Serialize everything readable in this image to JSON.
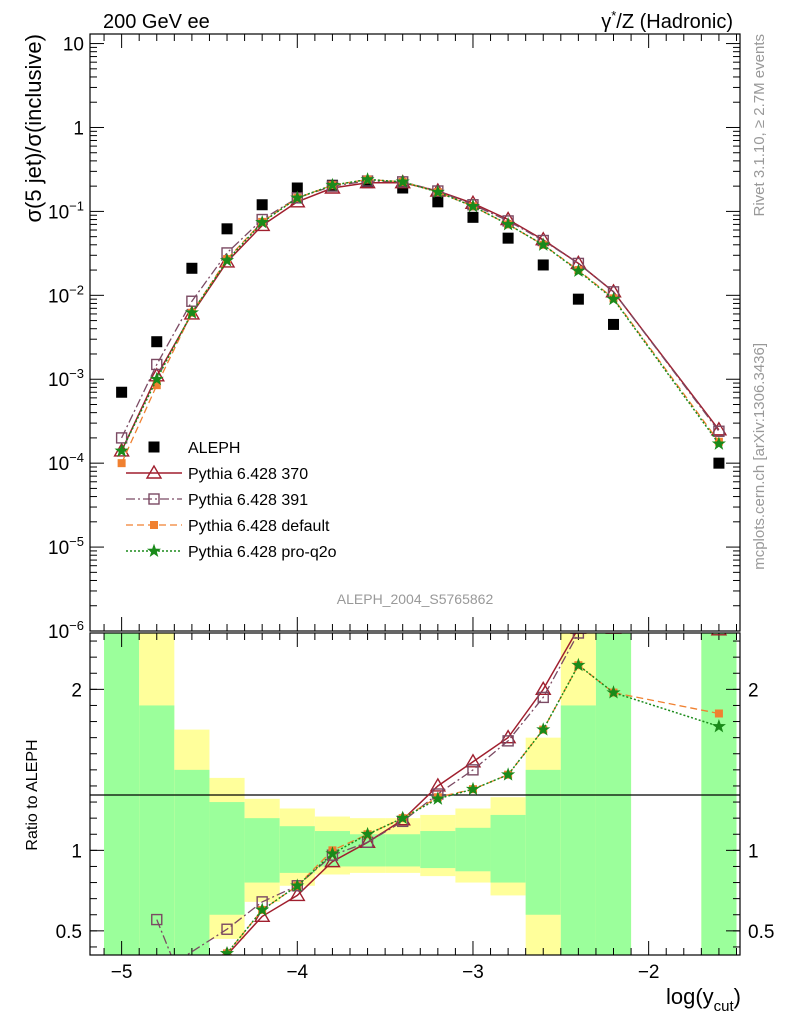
{
  "header": {
    "left": "200 GeV ee",
    "right_pre": "γ",
    "right_sup": "*",
    "right_post": "/Z (Hadronic)"
  },
  "side_text": {
    "rivet": "Rivet 3.1.10, ≥ 2.7M events",
    "mcplots": "mcplots.cern.ch [arXiv:1306.3436]"
  },
  "analysis_label": "ALEPH_2004_S5765862",
  "colors": {
    "data": "#000000",
    "p370": "#a01f2e",
    "p391": "#7b4a63",
    "pdefault": "#f08030",
    "pq2o": "#1a8a1a",
    "band_inner": "#9bff9b",
    "band_outer": "#ffff9b"
  },
  "chart_data": [
    {
      "type": "line",
      "panel": "main",
      "ylabel": "σ(5 jet)/σ(inclusive)",
      "yscale": "log",
      "ylim": [
        1e-06,
        13
      ],
      "xlim": [
        -5.18,
        -1.48
      ],
      "yticks": [
        {
          "v": 10,
          "m": "10"
        },
        {
          "v": 1,
          "m": "1"
        },
        {
          "v": 0.1,
          "m": "10",
          "e": "−1"
        },
        {
          "v": 0.01,
          "m": "10",
          "e": "−2"
        },
        {
          "v": 0.001,
          "m": "10",
          "e": "−3"
        },
        {
          "v": 0.0001,
          "m": "10",
          "e": "−4"
        },
        {
          "v": 1e-05,
          "m": "10",
          "e": "−5"
        },
        {
          "v": 1e-06,
          "m": "10",
          "e": "−6"
        }
      ],
      "legend_position": "lower-left",
      "series": [
        {
          "name": "ALEPH",
          "style": "data",
          "marker": "square-filled",
          "x": [
            -5.0,
            -4.8,
            -4.6,
            -4.4,
            -4.2,
            -4.0,
            -3.8,
            -3.6,
            -3.4,
            -3.2,
            -3.0,
            -2.8,
            -2.6,
            -2.4,
            -2.2,
            -1.6
          ],
          "y": [
            0.0007,
            0.0028,
            0.021,
            0.062,
            0.12,
            0.19,
            0.205,
            0.22,
            0.19,
            0.13,
            0.085,
            0.048,
            0.023,
            0.009,
            0.0045,
            0.0001
          ]
        },
        {
          "name": "Pythia 6.428 370",
          "style": "p370",
          "marker": "triangle-open",
          "x": [
            -5.0,
            -4.8,
            -4.6,
            -4.4,
            -4.2,
            -4.0,
            -3.8,
            -3.6,
            -3.4,
            -3.2,
            -3.0,
            -2.8,
            -2.6,
            -2.4,
            -2.2,
            -1.6
          ],
          "y": [
            0.00014,
            0.0011,
            0.006,
            0.025,
            0.068,
            0.13,
            0.19,
            0.22,
            0.22,
            0.175,
            0.125,
            0.08,
            0.046,
            0.024,
            0.011,
            0.00025
          ]
        },
        {
          "name": "Pythia 6.428 391",
          "style": "p391",
          "marker": "square-open",
          "x": [
            -5.0,
            -4.8,
            -4.6,
            -4.4,
            -4.2,
            -4.0,
            -3.8,
            -3.6,
            -3.4,
            -3.2,
            -3.0,
            -2.8,
            -2.6,
            -2.4,
            -2.2,
            -1.6
          ],
          "y": [
            0.0002,
            0.0015,
            0.0085,
            0.032,
            0.08,
            0.145,
            0.2,
            0.23,
            0.225,
            0.175,
            0.12,
            0.077,
            0.045,
            0.024,
            0.011,
            0.00024
          ]
        },
        {
          "name": "Pythia 6.428 default",
          "style": "pdefault",
          "marker": "square-filled-small",
          "x": [
            -5.0,
            -4.8,
            -4.6,
            -4.4,
            -4.2,
            -4.0,
            -3.8,
            -3.6,
            -3.4,
            -3.2,
            -3.0,
            -2.8,
            -2.6,
            -2.4,
            -2.2,
            -1.6
          ],
          "y": [
            0.0001,
            0.00085,
            0.0062,
            0.027,
            0.075,
            0.145,
            0.205,
            0.24,
            0.225,
            0.17,
            0.115,
            0.07,
            0.04,
            0.02,
            0.0092,
            0.00018
          ]
        },
        {
          "name": "Pythia 6.428 pro-q2o",
          "style": "pq2o",
          "marker": "star",
          "x": [
            -5.0,
            -4.8,
            -4.6,
            -4.4,
            -4.2,
            -4.0,
            -3.8,
            -3.6,
            -3.4,
            -3.2,
            -3.0,
            -2.8,
            -2.6,
            -2.4,
            -2.2,
            -1.6
          ],
          "y": [
            0.00014,
            0.001,
            0.0062,
            0.026,
            0.074,
            0.145,
            0.205,
            0.24,
            0.225,
            0.17,
            0.115,
            0.07,
            0.04,
            0.0195,
            0.009,
            0.00017
          ]
        }
      ]
    },
    {
      "type": "line",
      "panel": "ratio",
      "ylabel": "Ratio to ALEPH",
      "xlabel_base": "log(y",
      "xlabel_sub": "cut",
      "xlabel_end": ")",
      "ylim": [
        0.35,
        2.35
      ],
      "xlim": [
        -5.18,
        -1.48
      ],
      "yticks": [
        {
          "v": 0.5,
          "label": "0.5"
        },
        {
          "v": 1,
          "label": "1"
        },
        {
          "v": 2,
          "label": "2"
        }
      ],
      "xticks": [
        {
          "v": -5,
          "label": "−5"
        },
        {
          "v": -4,
          "label": "−4"
        },
        {
          "v": -3,
          "label": "−3"
        },
        {
          "v": -2,
          "label": "−2"
        }
      ],
      "bands": [
        {
          "x0": -5.1,
          "x1": -4.9,
          "outer": [
            0.35,
            2.35
          ],
          "inner": [
            0.35,
            2.35
          ]
        },
        {
          "x0": -4.9,
          "x1": -4.7,
          "outer": [
            0.35,
            2.35
          ],
          "inner": [
            0.35,
            1.9
          ]
        },
        {
          "x0": -4.7,
          "x1": -4.5,
          "outer": [
            0.35,
            1.75
          ],
          "inner": [
            0.35,
            1.5
          ]
        },
        {
          "x0": -4.5,
          "x1": -4.3,
          "outer": [
            0.45,
            1.45
          ],
          "inner": [
            0.6,
            1.3
          ]
        },
        {
          "x0": -4.3,
          "x1": -4.1,
          "outer": [
            0.68,
            1.32
          ],
          "inner": [
            0.8,
            1.2
          ]
        },
        {
          "x0": -4.1,
          "x1": -3.9,
          "outer": [
            0.78,
            1.26
          ],
          "inner": [
            0.86,
            1.15
          ]
        },
        {
          "x0": -3.9,
          "x1": -3.7,
          "outer": [
            0.85,
            1.21
          ],
          "inner": [
            0.9,
            1.12
          ]
        },
        {
          "x0": -3.7,
          "x1": -3.5,
          "outer": [
            0.86,
            1.2
          ],
          "inner": [
            0.9,
            1.1
          ]
        },
        {
          "x0": -3.5,
          "x1": -3.3,
          "outer": [
            0.86,
            1.2
          ],
          "inner": [
            0.9,
            1.1
          ]
        },
        {
          "x0": -3.3,
          "x1": -3.1,
          "outer": [
            0.84,
            1.22
          ],
          "inner": [
            0.89,
            1.12
          ]
        },
        {
          "x0": -3.1,
          "x1": -2.9,
          "outer": [
            0.8,
            1.26
          ],
          "inner": [
            0.87,
            1.14
          ]
        },
        {
          "x0": -2.9,
          "x1": -2.7,
          "outer": [
            0.72,
            1.33
          ],
          "inner": [
            0.8,
            1.22
          ]
        },
        {
          "x0": -2.7,
          "x1": -2.5,
          "outer": [
            0.35,
            1.7
          ],
          "inner": [
            0.6,
            1.5
          ]
        },
        {
          "x0": -2.5,
          "x1": -2.3,
          "outer": [
            0.35,
            2.35
          ],
          "inner": [
            0.35,
            1.9
          ]
        },
        {
          "x0": -2.3,
          "x1": -2.1,
          "outer": [
            0.35,
            2.35
          ],
          "inner": [
            0.35,
            2.35
          ]
        },
        {
          "x0": -1.7,
          "x1": -1.5,
          "outer": [
            0.35,
            2.35
          ],
          "inner": [
            0.35,
            2.35
          ]
        }
      ],
      "series": [
        {
          "name": "Pythia 6.428 370",
          "style": "p370",
          "marker": "triangle-open",
          "x": [
            -4.4,
            -4.2,
            -4.0,
            -3.8,
            -3.6,
            -3.4,
            -3.2,
            -3.0,
            -2.8,
            -2.6,
            -2.4,
            -2.2,
            -1.6
          ],
          "y": [
            0.35,
            0.59,
            0.72,
            0.93,
            1.05,
            1.19,
            1.4,
            1.55,
            1.7,
            2.0,
            2.38,
            2.38,
            2.37
          ]
        },
        {
          "name": "Pythia 6.428 391",
          "style": "p391",
          "marker": "square-open",
          "x": [
            -4.8,
            -4.7,
            -4.4,
            -4.2,
            -4.0,
            -3.8,
            -3.6,
            -3.4,
            -3.2,
            -3.0,
            -2.8,
            -2.6,
            -2.4,
            -2.2,
            -1.6
          ],
          "y": [
            0.57,
            0.3,
            0.51,
            0.68,
            0.78,
            0.97,
            1.05,
            1.18,
            1.35,
            1.5,
            1.68,
            1.95,
            2.35,
            2.4,
            2.39
          ]
        },
        {
          "name": "Pythia 6.428 default",
          "style": "pdefault",
          "marker": "square-filled-small",
          "x": [
            -4.4,
            -4.2,
            -4.0,
            -3.8,
            -3.6,
            -3.4,
            -3.2,
            -3.0,
            -2.8,
            -2.6,
            -2.4,
            -2.2,
            -1.6
          ],
          "y": [
            0.36,
            0.63,
            0.78,
            1.0,
            1.1,
            1.2,
            1.33,
            1.38,
            1.47,
            1.75,
            2.15,
            1.98,
            1.85
          ]
        },
        {
          "name": "Pythia 6.428 pro-q2o",
          "style": "pq2o",
          "marker": "star",
          "x": [
            -4.4,
            -4.2,
            -4.0,
            -3.8,
            -3.6,
            -3.4,
            -3.2,
            -3.0,
            -2.8,
            -2.6,
            -2.4,
            -2.2,
            -1.6
          ],
          "y": [
            0.36,
            0.63,
            0.78,
            0.98,
            1.1,
            1.2,
            1.32,
            1.38,
            1.47,
            1.75,
            2.15,
            1.98,
            1.77
          ]
        }
      ]
    }
  ]
}
